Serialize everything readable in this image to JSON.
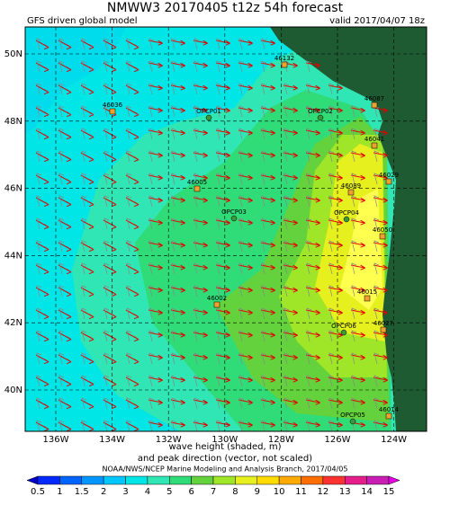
{
  "header": {
    "title": "NMWW3 20170405 t12z    54h forecast",
    "subtitle_left": "GFS driven global model",
    "subtitle_right": "valid 2017/04/07 18z"
  },
  "map": {
    "lat_labels": [
      "50N",
      "48N",
      "46N",
      "44N",
      "42N",
      "40N"
    ],
    "lon_labels": [
      "136W",
      "134W",
      "132W",
      "130W",
      "128W",
      "126W",
      "124W"
    ],
    "stations": [
      "46132",
      "46087",
      "46036",
      "OPCP01",
      "OPCP02",
      "46041",
      "46029",
      "46089",
      "46005",
      "OPCP03",
      "OPCP04",
      "46050",
      "46002",
      "46015",
      "OPCP06",
      "46027",
      "OPCP05",
      "46014"
    ]
  },
  "footer": {
    "line1": "wave height (shaded, m)",
    "line2": "and peak direction (vector, not scaled)",
    "credit": "NOAA/NWS/NCEP Marine Modeling and Analysis Branch, 2017/04/05"
  },
  "colorbar": {
    "labels": [
      "0.5",
      "1",
      "1.5",
      "2",
      "3",
      "4",
      "5",
      "6",
      "7",
      "8",
      "9",
      "10",
      "11",
      "12",
      "13",
      "14",
      "15"
    ],
    "colors": [
      "#0000c8",
      "#0028ff",
      "#0064ff",
      "#0096ff",
      "#00c8ff",
      "#00e6e6",
      "#30e6b4",
      "#30dc78",
      "#64d23c",
      "#a0e628",
      "#e6f01e",
      "#ffdc00",
      "#ffaa00",
      "#ff6e00",
      "#ff3232",
      "#e61e8c",
      "#c81eb4",
      "#e600e6"
    ]
  }
}
